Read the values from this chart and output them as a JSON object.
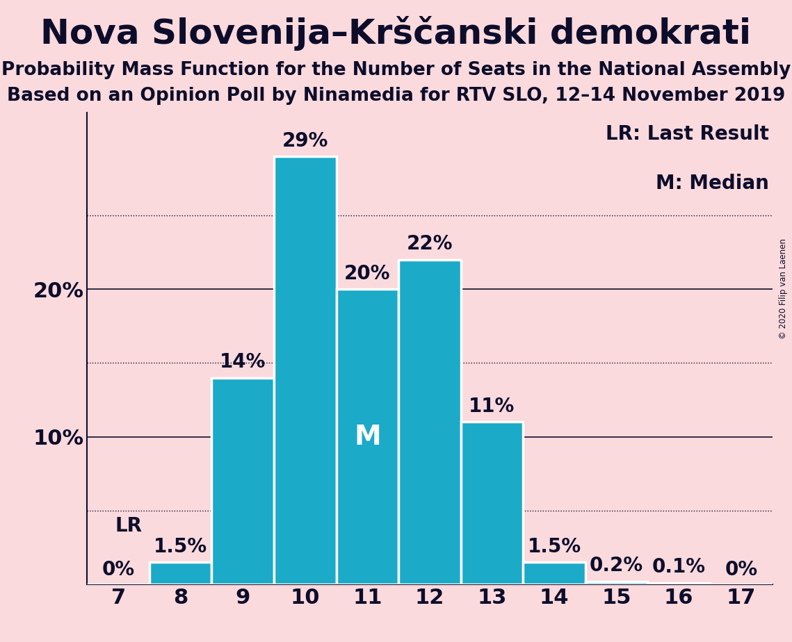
{
  "title": "Nova Slovenija–Krščanski demokrati",
  "subtitle1": "Probability Mass Function for the Number of Seats in the National Assembly",
  "subtitle2": "Based on an Opinion Poll by Ninamedia for RTV SLO, 12–14 November 2019",
  "copyright": "© 2020 Filip van Laenen",
  "categories": [
    7,
    8,
    9,
    10,
    11,
    12,
    13,
    14,
    15,
    16,
    17
  ],
  "values": [
    0.0,
    1.5,
    14.0,
    29.0,
    20.0,
    22.0,
    11.0,
    1.5,
    0.2,
    0.1,
    0.0
  ],
  "bar_color": "#1BAAC7",
  "bg_color": "#FADADD",
  "text_color": "#0D0D2B",
  "bar_labels": [
    "0%",
    "1.5%",
    "14%",
    "29%",
    "20%",
    "22%",
    "11%",
    "1.5%",
    "0.2%",
    "0.1%",
    "0%"
  ],
  "lr_seat": 7,
  "lr_label": "LR",
  "median_seat": 11,
  "median_label": "M",
  "solid_lines": [
    0,
    10,
    20
  ],
  "dotted_lines": [
    5,
    15,
    25
  ],
  "ylim": [
    0,
    32
  ],
  "legend_lr": "LR: Last Result",
  "legend_m": "M: Median",
  "title_fontsize": 36,
  "subtitle_fontsize": 19,
  "axis_label_fontsize": 22,
  "bar_label_fontsize": 20,
  "legend_fontsize": 20,
  "median_fontsize": 28
}
